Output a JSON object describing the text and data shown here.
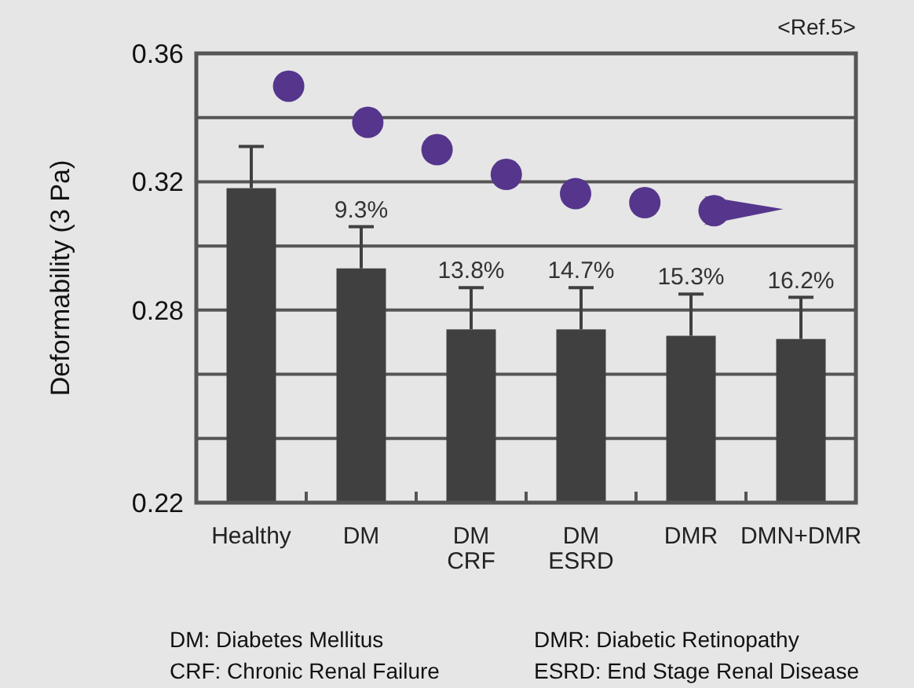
{
  "chart_data": {
    "type": "bar",
    "ylabel": "Deformability (3 Pa)",
    "categories": [
      "Healthy",
      "DM",
      "DM\nCRF",
      "DM\nESRD",
      "DMR",
      "DMN+DMR"
    ],
    "values": [
      0.318,
      0.293,
      0.274,
      0.274,
      0.272,
      0.271
    ],
    "errors": [
      0.013,
      0.013,
      0.013,
      0.013,
      0.013,
      0.013
    ],
    "color": "#404040",
    "ylim": [
      0.22,
      0.36
    ],
    "yticks": [
      0.22,
      {
        "value": 0.24,
        "label": null
      },
      {
        "value": 0.26,
        "label": null
      },
      0.28,
      {
        "value": 0.3,
        "label": null
      },
      0.32,
      {
        "value": 0.34,
        "label": null
      },
      0.36
    ],
    "grid": "y",
    "annotations": [
      "<Ref.5>",
      "DM: Diabetes Mellitus",
      "CRF: Chronic Renal Failure",
      "DMR: Diabetic Retinopathy",
      "ESRD: End Stage Renal Disease",
      {
        "text": "9.3%",
        "x": "DM",
        "y": 0.306
      },
      {
        "text": "13.8%",
        "x": "DM\nCRF",
        "y": 0.287
      },
      {
        "text": "14.7%",
        "x": "DM\nESRD",
        "y": 0.287
      },
      {
        "text": "15.3%",
        "x": "DMR",
        "y": 0.285
      },
      {
        "text": "16.2%",
        "x": "DMN+DMR",
        "y": 0.284
      }
    ]
  }
}
